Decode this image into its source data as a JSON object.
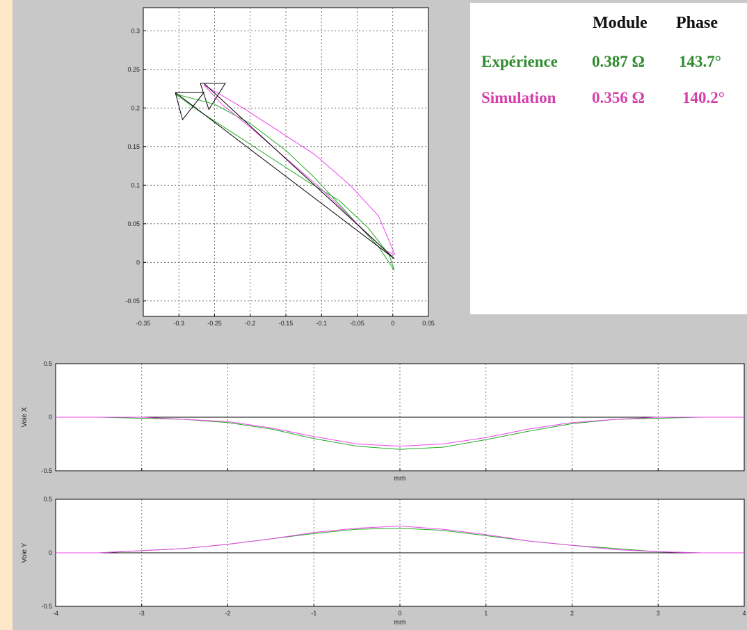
{
  "info": {
    "header_module": "Module",
    "header_phase": "Phase",
    "rows": [
      {
        "label": "Expérience",
        "module": "0.387 Ω",
        "phase": "143.7°",
        "color": "#2e8b2e"
      },
      {
        "label": "Simulation",
        "module": "0.356 Ω",
        "phase": "140.2°",
        "color": "#d63fa9"
      }
    ]
  },
  "colors": {
    "green": "#22aa22",
    "magenta": "#ee44ee",
    "black": "#000000"
  },
  "chart_data": [
    {
      "type": "line",
      "name": "lissajous",
      "xlim": [
        -0.35,
        0.05
      ],
      "ylim": [
        -0.07,
        0.33
      ],
      "xticks": [
        "-0.35",
        "-0.3",
        "-0.25",
        "-0.2",
        "-0.15",
        "-0.1",
        "-0.05",
        "0",
        "0.05"
      ],
      "xtick_values": [
        -0.35,
        -0.3,
        -0.25,
        -0.2,
        -0.15,
        -0.1,
        -0.05,
        0,
        0.05
      ],
      "yticks": [
        "-0.05",
        "0",
        "0.05",
        "0.1",
        "0.15",
        "0.2",
        "0.25",
        "0.3"
      ],
      "ytick_values": [
        -0.05,
        0,
        0.05,
        0.1,
        0.15,
        0.2,
        0.25,
        0.3
      ],
      "grid": true,
      "series": [
        {
          "color": "green",
          "x": [
            0.002,
            -0.02,
            -0.05,
            -0.08,
            -0.11,
            -0.15,
            -0.2,
            -0.25,
            -0.305,
            -0.27,
            -0.22,
            -0.17,
            -0.12,
            -0.075,
            -0.035,
            -0.005,
            0.002
          ],
          "y": [
            -0.01,
            0.02,
            0.05,
            0.08,
            0.11,
            0.145,
            0.18,
            0.205,
            0.218,
            0.195,
            0.165,
            0.135,
            0.105,
            0.08,
            0.045,
            0.01,
            -0.01
          ]
        },
        {
          "color": "magenta",
          "x": [
            0.003,
            -0.02,
            -0.06,
            -0.11,
            -0.16,
            -0.21,
            -0.265,
            -0.24,
            -0.2,
            -0.15,
            -0.1,
            -0.05,
            -0.01,
            0.003
          ],
          "y": [
            0.01,
            0.06,
            0.1,
            0.14,
            0.17,
            0.2,
            0.23,
            0.205,
            0.175,
            0.135,
            0.095,
            0.05,
            0.015,
            0.01
          ]
        },
        {
          "color": "black",
          "x": [
            0.002,
            -0.305
          ],
          "y": [
            0.005,
            0.22
          ]
        },
        {
          "color": "black",
          "x": [
            0.002,
            -0.265
          ],
          "y": [
            0.005,
            0.232
          ]
        },
        {
          "color": "black",
          "x": [
            -0.305,
            -0.295,
            -0.265,
            -0.305
          ],
          "y": [
            0.22,
            0.185,
            0.22,
            0.22
          ]
        },
        {
          "color": "black",
          "x": [
            -0.27,
            -0.258,
            -0.235,
            -0.27
          ],
          "y": [
            0.232,
            0.198,
            0.232,
            0.232
          ]
        }
      ]
    },
    {
      "type": "line",
      "name": "voie-x",
      "ylabel": "Voie X",
      "xlabel": "mm",
      "xlim": [
        -4,
        4
      ],
      "ylim": [
        -0.5,
        0.5
      ],
      "yticks": [
        "-0.5",
        "0",
        "0.5"
      ],
      "ytick_values": [
        -0.5,
        0,
        0.5
      ],
      "xtick_values": [
        -4,
        -3,
        -2,
        -1,
        0,
        1,
        2,
        3,
        4
      ],
      "grid": true,
      "series": [
        {
          "color": "black",
          "x": [
            -4,
            4
          ],
          "y": [
            0,
            0
          ]
        },
        {
          "color": "green",
          "x": [
            -4,
            -3.5,
            -3,
            -2.5,
            -2,
            -1.5,
            -1,
            -0.5,
            0,
            0.5,
            1,
            1.5,
            2,
            2.5,
            3,
            3.5,
            4
          ],
          "y": [
            0,
            0,
            -0.01,
            -0.02,
            -0.05,
            -0.11,
            -0.2,
            -0.27,
            -0.3,
            -0.28,
            -0.21,
            -0.13,
            -0.06,
            -0.02,
            -0.01,
            0,
            0
          ]
        },
        {
          "color": "magenta",
          "x": [
            -4,
            -3.5,
            -3,
            -2.5,
            -2,
            -1.5,
            -1,
            -0.5,
            0,
            0.5,
            1,
            1.5,
            2,
            2.5,
            3,
            3.5,
            4
          ],
          "y": [
            0,
            0,
            0,
            -0.02,
            -0.04,
            -0.1,
            -0.18,
            -0.25,
            -0.27,
            -0.25,
            -0.19,
            -0.11,
            -0.05,
            -0.02,
            0,
            0,
            0
          ]
        }
      ]
    },
    {
      "type": "line",
      "name": "voie-y",
      "ylabel": "Voie Y",
      "xlabel": "mm",
      "xlim": [
        -4,
        4
      ],
      "ylim": [
        -0.5,
        0.5
      ],
      "xticks": [
        "-4",
        "-3",
        "-2",
        "-1",
        "0",
        "1",
        "2",
        "3",
        "4"
      ],
      "xtick_values": [
        -4,
        -3,
        -2,
        -1,
        0,
        1,
        2,
        3,
        4
      ],
      "yticks": [
        "-0.5",
        "0",
        "0.5"
      ],
      "ytick_values": [
        -0.5,
        0,
        0.5
      ],
      "grid": true,
      "series": [
        {
          "color": "black",
          "x": [
            -4,
            4
          ],
          "y": [
            0,
            0
          ]
        },
        {
          "color": "green",
          "x": [
            -4,
            -3.5,
            -3,
            -2.5,
            -2,
            -1.5,
            -1,
            -0.5,
            0,
            0.5,
            1,
            1.5,
            2,
            2.5,
            3,
            3.5,
            4
          ],
          "y": [
            0,
            0,
            0.02,
            0.04,
            0.08,
            0.13,
            0.18,
            0.22,
            0.23,
            0.21,
            0.16,
            0.11,
            0.07,
            0.04,
            0.01,
            0,
            0
          ]
        },
        {
          "color": "magenta",
          "x": [
            -4,
            -3.5,
            -3,
            -2.5,
            -2,
            -1.5,
            -1,
            -0.5,
            0,
            0.5,
            1,
            1.5,
            2,
            2.5,
            3,
            3.5,
            4
          ],
          "y": [
            0,
            0,
            0.02,
            0.04,
            0.08,
            0.13,
            0.19,
            0.23,
            0.25,
            0.22,
            0.17,
            0.11,
            0.07,
            0.03,
            0.01,
            0,
            0
          ]
        }
      ]
    }
  ]
}
